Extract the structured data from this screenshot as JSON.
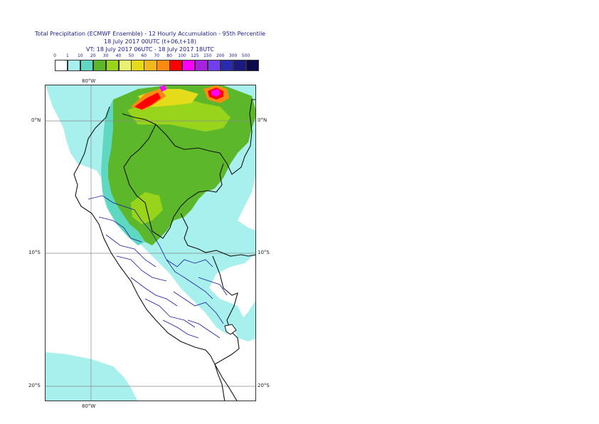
{
  "title": {
    "line1": "Total Precipitation (ECMWF Ensemble) - 12 Hourly Accumulation - 95th Percentile",
    "line2": "18 July 2017 00UTC (t+06,t+18)",
    "line3": "VT: 18 July 2017 06UTC - 18 July 2017 18UTC"
  },
  "legend": {
    "ticks": [
      "0",
      "1",
      "10",
      "20",
      "30",
      "40",
      "50",
      "60",
      "70",
      "80",
      "100",
      "125",
      "150",
      "200",
      "300",
      "500"
    ],
    "colors": [
      "#ffffff",
      "#a8f0ee",
      "#5ed8c0",
      "#5cb82a",
      "#99d41c",
      "#eaf070",
      "#e4dc1a",
      "#f2b71c",
      "#ff8a12",
      "#ff0000",
      "#ff00ff",
      "#a820e0",
      "#7040f0",
      "#2a2ab0",
      "#1a1a80",
      "#0a0a4a"
    ]
  },
  "axes": {
    "lon_top": "80°W",
    "lon_bottom": "80°W",
    "lat_0_left": "0°N",
    "lat_0_right": "0°N",
    "lat_10_left": "10°S",
    "lat_10_right": "10°S",
    "lat_20_left": "20°S",
    "lat_20_right": "20°S"
  }
}
